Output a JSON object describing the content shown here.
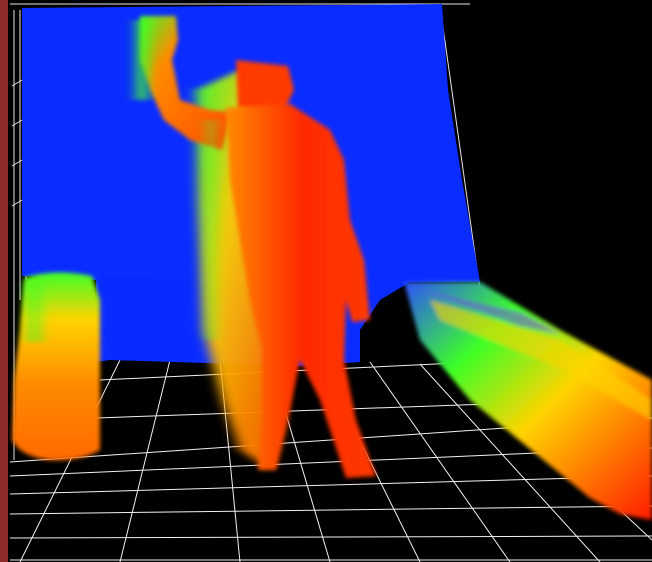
{
  "viewport": {
    "background": "#000000",
    "left_border_color": "#8b2b2b",
    "grid_color": "#ffffff"
  },
  "colormap": {
    "near": "#ff1a00",
    "mid_near": "#ff7a00",
    "mid": "#ffd400",
    "mid_far": "#3cff28",
    "far": "#0a2cff"
  },
  "scene": {
    "type": "depth-point-cloud",
    "subject": "person-with-raised-arm",
    "background_wall": "blue",
    "foreground_objects": [
      "left-pillar",
      "center-pillar",
      "right-bar"
    ]
  }
}
